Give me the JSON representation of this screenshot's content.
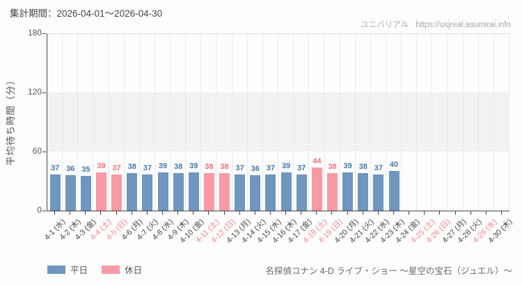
{
  "header": {
    "period": "集計期間：2026-04-01～2026-04-30"
  },
  "source": {
    "name": "ユニバリアル",
    "url": "https://usjreal.asumirai.info"
  },
  "chart_data": {
    "type": "bar",
    "title": "",
    "xlabel": "",
    "ylabel": "平均待ち時間（分）",
    "ylim": [
      0,
      180
    ],
    "yticks": [
      0,
      60,
      120,
      180
    ],
    "shaded_band": [
      60,
      120
    ],
    "grid": "vertical",
    "legend_position": "bottom-left",
    "categories": [
      "4-1 (水)",
      "4-2 (木)",
      "4-3 (金)",
      "4-4 (土)",
      "4-5 (日)",
      "4-6 (月)",
      "4-7 (火)",
      "4-8 (水)",
      "4-9 (木)",
      "4-10 (金)",
      "4-11 (土)",
      "4-12 (日)",
      "4-13 (月)",
      "4-14 (火)",
      "4-15 (水)",
      "4-16 (木)",
      "4-17 (金)",
      "4-18 (土)",
      "4-19 (日)",
      "4-20 (月)",
      "4-21 (火)",
      "4-22 (水)",
      "4-23 (木)",
      "4-24 (金)",
      "4-25 (土)",
      "4-26 (日)",
      "4-27 (月)",
      "4-28 (火)",
      "4-29 (水)",
      "4-30 (木)"
    ],
    "values": [
      37,
      36,
      35,
      39,
      37,
      38,
      37,
      39,
      38,
      39,
      38,
      38,
      37,
      36,
      37,
      39,
      37,
      44,
      38,
      39,
      38,
      37,
      40,
      null,
      null,
      null,
      null,
      null,
      null,
      null
    ],
    "holiday_flags": [
      false,
      false,
      false,
      true,
      true,
      false,
      false,
      false,
      false,
      false,
      true,
      true,
      false,
      false,
      false,
      false,
      false,
      true,
      true,
      false,
      false,
      false,
      false,
      false,
      true,
      true,
      false,
      false,
      true,
      false
    ],
    "colors": {
      "weekday_bar": "#6e96c0",
      "holiday_bar": "#f89aa4",
      "weekday_value_label": "#4176b0",
      "holiday_value_label": "#f76d7b",
      "weekday_axis_label": "#454545",
      "holiday_axis_label": "#f9838d",
      "axis_line": "#444444",
      "band_fill": "#f1f2f1",
      "gridline": "#e8eae8"
    }
  },
  "legend": {
    "items": [
      {
        "label": "平日",
        "color": "#6e96c0"
      },
      {
        "label": "休日",
        "color": "#f89aa4"
      }
    ]
  },
  "footer": {
    "attraction": "名探偵コナン 4-D ライブ・ショー ～星空の宝石（ジュエル）～"
  }
}
